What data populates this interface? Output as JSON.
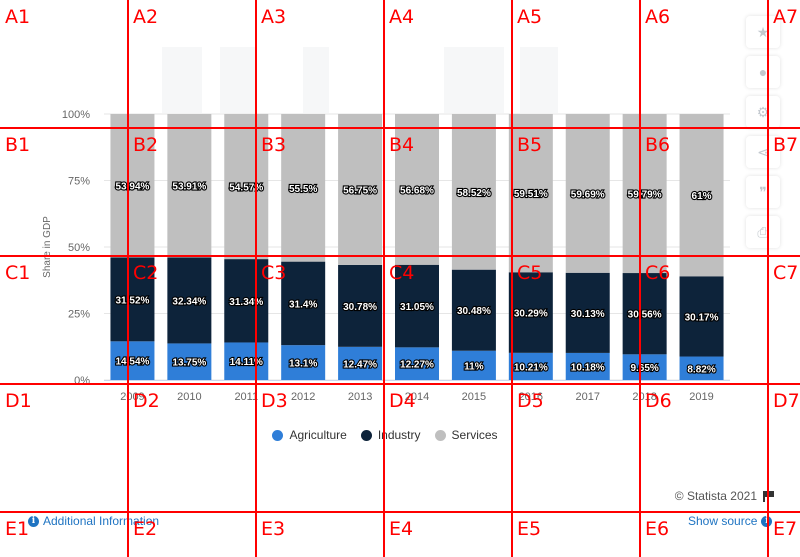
{
  "chart_data": {
    "type": "bar",
    "stacked": true,
    "title": "",
    "xlabel": "",
    "ylabel": "Share in GDP",
    "ylim": [
      0,
      100
    ],
    "yticks": [
      "0%",
      "25%",
      "50%",
      "75%",
      "100%"
    ],
    "categories": [
      "2009",
      "2010",
      "2011",
      "2012",
      "2013",
      "2014",
      "2015",
      "2016",
      "2017",
      "2018",
      "2019"
    ],
    "series": [
      {
        "name": "Agriculture",
        "color": "#2f7ed8",
        "values": [
          14.54,
          13.75,
          14.11,
          13.1,
          12.47,
          12.27,
          11,
          10.21,
          10.18,
          9.65,
          8.82
        ],
        "labels": [
          "14.54%",
          "13.75%",
          "14.11%",
          "13.1%",
          "12.47%",
          "12.27%",
          "11%",
          "10.21%",
          "10.18%",
          "9.65%",
          "8.82%"
        ]
      },
      {
        "name": "Industry",
        "color": "#0d233a",
        "values": [
          31.52,
          32.34,
          31.34,
          31.4,
          30.78,
          31.05,
          30.48,
          30.29,
          30.13,
          30.56,
          30.17
        ],
        "labels": [
          "31.52%",
          "32.34%",
          "31.34%",
          "31.4%",
          "30.78%",
          "31.05%",
          "30.48%",
          "30.29%",
          "30.13%",
          "30.56%",
          "30.17%"
        ]
      },
      {
        "name": "Services",
        "color": "#bfbfbf",
        "values": [
          53.94,
          53.91,
          54.57,
          55.5,
          56.75,
          56.68,
          58.52,
          59.51,
          59.69,
          59.79,
          61
        ],
        "labels": [
          "53.94%",
          "53.91%",
          "54.57%",
          "55.5%",
          "56.75%",
          "56.68%",
          "58.52%",
          "59.51%",
          "59.69%",
          "59.79%",
          "61%"
        ]
      }
    ],
    "legend_position": "bottom-center",
    "grid": true
  },
  "credits": "© Statista 2021",
  "footer": {
    "left_link": "Additional Information",
    "right_link": "Show source"
  },
  "toolbar": {
    "icons": [
      "star-icon",
      "bell-icon",
      "gear-icon",
      "share-icon",
      "quote-icon",
      "print-icon"
    ]
  },
  "grid_labels": [
    "A1",
    "A2",
    "A3",
    "A4",
    "A5",
    "A6",
    "A7",
    "B1",
    "B2",
    "B3",
    "B4",
    "B5",
    "B6",
    "B7",
    "C1",
    "C2",
    "C3",
    "C4",
    "C5",
    "C6",
    "C7",
    "D1",
    "D2",
    "D3",
    "D4",
    "D5",
    "D6",
    "D7",
    "E1",
    "E2",
    "E3",
    "E4",
    "E5",
    "E6",
    "E7"
  ]
}
